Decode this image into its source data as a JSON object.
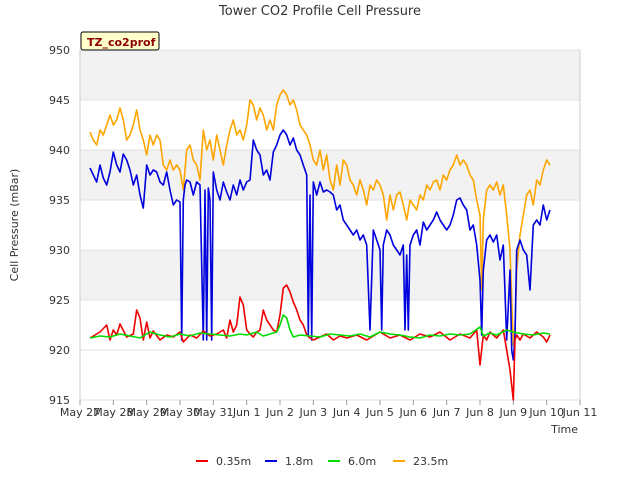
{
  "chart_data": {
    "type": "line",
    "title": "Tower CO2 Profile Cell Pressure",
    "xlabel": "Time",
    "ylabel": "Cell Pressure (mBar)",
    "badge": "TZ_co2prof",
    "ylim": [
      915,
      950
    ],
    "yticks": [
      915,
      920,
      925,
      930,
      935,
      940,
      945,
      950
    ],
    "xlim": [
      0,
      15
    ],
    "xticks": [
      {
        "x": 0,
        "label": "May 27"
      },
      {
        "x": 1,
        "label": "May 28"
      },
      {
        "x": 2,
        "label": "May 29"
      },
      {
        "x": 3,
        "label": "May 30"
      },
      {
        "x": 4,
        "label": "May 31"
      },
      {
        "x": 5,
        "label": "Jun 1"
      },
      {
        "x": 6,
        "label": "Jun 2"
      },
      {
        "x": 7,
        "label": "Jun 3"
      },
      {
        "x": 8,
        "label": "Jun 4"
      },
      {
        "x": 9,
        "label": "Jun 5"
      },
      {
        "x": 10,
        "label": "Jun 6"
      },
      {
        "x": 11,
        "label": "Jun 7"
      },
      {
        "x": 12,
        "label": "Jun 8"
      },
      {
        "x": 13,
        "label": "Jun 9"
      },
      {
        "x": 14,
        "label": "Jun 10"
      },
      {
        "x": 15,
        "label": "Jun 11"
      }
    ],
    "grid_bands": true,
    "legend_position": "bottom",
    "series": [
      {
        "name": "0.35m",
        "color": "#ee0000",
        "x": [
          0.3,
          0.6,
          0.8,
          0.9,
          1.0,
          1.1,
          1.2,
          1.4,
          1.6,
          1.7,
          1.8,
          1.9,
          2.0,
          2.1,
          2.2,
          2.4,
          2.6,
          2.8,
          3.0,
          3.1,
          3.3,
          3.5,
          3.7,
          3.9,
          4.1,
          4.3,
          4.4,
          4.5,
          4.6,
          4.7,
          4.8,
          4.9,
          5.0,
          5.1,
          5.2,
          5.3,
          5.4,
          5.5,
          5.6,
          5.7,
          5.8,
          5.9,
          6.0,
          6.1,
          6.2,
          6.3,
          6.4,
          6.5,
          6.6,
          6.7,
          6.8,
          6.9,
          7.0,
          7.2,
          7.4,
          7.6,
          7.8,
          8.0,
          8.3,
          8.6,
          9.0,
          9.3,
          9.6,
          9.9,
          10.2,
          10.5,
          10.8,
          11.1,
          11.4,
          11.7,
          11.9,
          12.0,
          12.1,
          12.2,
          12.3,
          12.5,
          12.7,
          12.8,
          12.9,
          13.0,
          13.05,
          13.1,
          13.2,
          13.3,
          13.5,
          13.7,
          13.9,
          14.0,
          14.1
        ],
        "y": [
          921.2,
          921.8,
          922.5,
          921.0,
          922.0,
          921.5,
          922.6,
          921.3,
          921.6,
          924.0,
          923.2,
          921.0,
          922.8,
          921.2,
          921.9,
          921.0,
          921.5,
          921.3,
          921.8,
          920.8,
          921.5,
          921.2,
          921.9,
          921.4,
          921.6,
          922.0,
          921.2,
          923.0,
          921.8,
          922.5,
          925.3,
          924.5,
          922.0,
          921.6,
          921.3,
          921.8,
          922.0,
          924.0,
          923.0,
          922.5,
          922.0,
          921.8,
          923.5,
          926.2,
          926.5,
          925.8,
          924.8,
          924.0,
          923.0,
          922.5,
          921.5,
          921.2,
          921.0,
          921.3,
          921.6,
          921.0,
          921.4,
          921.2,
          921.5,
          921.0,
          921.8,
          921.2,
          921.5,
          921.0,
          921.6,
          921.3,
          921.8,
          921.0,
          921.6,
          921.2,
          922.0,
          918.5,
          921.5,
          921.0,
          921.8,
          921.2,
          922.0,
          920.0,
          918.0,
          915.0,
          921.0,
          921.5,
          921.0,
          921.6,
          921.2,
          921.8,
          921.3,
          920.8,
          921.5
        ]
      },
      {
        "name": "1.8m",
        "color": "#0000dd",
        "x": [
          0.3,
          0.4,
          0.5,
          0.6,
          0.7,
          0.8,
          0.9,
          1.0,
          1.1,
          1.2,
          1.3,
          1.4,
          1.5,
          1.6,
          1.7,
          1.8,
          1.9,
          2.0,
          2.1,
          2.2,
          2.3,
          2.4,
          2.5,
          2.6,
          2.7,
          2.8,
          2.9,
          3.0,
          3.05,
          3.1,
          3.15,
          3.2,
          3.3,
          3.4,
          3.5,
          3.6,
          3.7,
          3.75,
          3.8,
          3.85,
          3.9,
          3.95,
          4.0,
          4.1,
          4.2,
          4.3,
          4.4,
          4.5,
          4.6,
          4.7,
          4.8,
          4.9,
          5.0,
          5.1,
          5.2,
          5.3,
          5.4,
          5.5,
          5.6,
          5.7,
          5.8,
          5.9,
          6.0,
          6.1,
          6.2,
          6.3,
          6.4,
          6.5,
          6.6,
          6.7,
          6.8,
          6.85,
          6.9,
          6.95,
          7.0,
          7.1,
          7.2,
          7.3,
          7.4,
          7.5,
          7.6,
          7.7,
          7.8,
          7.9,
          8.0,
          8.1,
          8.2,
          8.3,
          8.4,
          8.5,
          8.6,
          8.7,
          8.8,
          8.9,
          9.0,
          9.05,
          9.1,
          9.2,
          9.3,
          9.4,
          9.5,
          9.6,
          9.7,
          9.75,
          9.8,
          9.85,
          9.9,
          10.0,
          10.1,
          10.2,
          10.3,
          10.4,
          10.5,
          10.6,
          10.7,
          10.8,
          10.9,
          11.0,
          11.1,
          11.2,
          11.3,
          11.4,
          11.5,
          11.6,
          11.7,
          11.8,
          11.9,
          12.0,
          12.05,
          12.1,
          12.2,
          12.3,
          12.4,
          12.5,
          12.6,
          12.7,
          12.8,
          12.9,
          12.95,
          13.0,
          13.05,
          13.1,
          13.2,
          13.3,
          13.4,
          13.5,
          13.6,
          13.7,
          13.8,
          13.9,
          14.0,
          14.1
        ],
        "y": [
          938.2,
          937.5,
          936.8,
          938.5,
          937.2,
          936.5,
          937.8,
          939.8,
          938.5,
          937.8,
          939.6,
          939.0,
          938.0,
          936.5,
          937.5,
          935.5,
          934.2,
          938.5,
          937.5,
          938.0,
          937.8,
          936.8,
          936.5,
          937.8,
          936.0,
          934.5,
          935.0,
          934.8,
          921.0,
          935.0,
          936.5,
          937.0,
          936.8,
          935.5,
          936.8,
          936.5,
          921.0,
          936.0,
          921.0,
          936.2,
          935.0,
          921.0,
          937.8,
          936.0,
          935.0,
          936.8,
          935.8,
          935.0,
          936.5,
          935.5,
          937.0,
          936.0,
          936.8,
          937.0,
          941.0,
          940.0,
          939.5,
          937.5,
          938.0,
          937.0,
          939.8,
          940.5,
          941.5,
          942.0,
          941.5,
          940.5,
          941.2,
          940.0,
          939.5,
          938.5,
          937.5,
          921.5,
          935.5,
          921.0,
          936.8,
          935.5,
          936.8,
          935.8,
          936.0,
          935.8,
          935.5,
          934.0,
          934.5,
          933.0,
          932.5,
          932.0,
          931.5,
          932.0,
          931.0,
          931.5,
          930.5,
          922.0,
          932.0,
          931.0,
          930.0,
          922.0,
          930.5,
          932.0,
          931.5,
          930.5,
          930.0,
          929.5,
          930.5,
          922.0,
          929.5,
          922.0,
          930.5,
          931.5,
          932.0,
          930.5,
          932.8,
          932.0,
          932.5,
          933.0,
          933.8,
          933.0,
          932.5,
          932.0,
          932.5,
          933.5,
          935.0,
          935.2,
          934.5,
          934.0,
          932.0,
          932.5,
          930.5,
          927.0,
          921.5,
          928.0,
          931.0,
          931.5,
          930.8,
          931.5,
          929.0,
          930.5,
          921.0,
          928.0,
          920.0,
          919.0,
          921.5,
          930.0,
          931.0,
          930.0,
          929.5,
          926.0,
          932.5,
          933.0,
          932.5,
          934.5,
          933.0,
          934.0
        ]
      },
      {
        "name": "6.0m",
        "color": "#00dd00",
        "x": [
          0.3,
          0.6,
          0.9,
          1.2,
          1.5,
          1.8,
          2.1,
          2.4,
          2.7,
          3.0,
          3.3,
          3.6,
          3.9,
          4.2,
          4.5,
          4.8,
          5.0,
          5.3,
          5.5,
          5.7,
          5.9,
          6.0,
          6.1,
          6.2,
          6.3,
          6.4,
          6.6,
          6.9,
          7.2,
          7.5,
          7.8,
          8.1,
          8.4,
          8.7,
          9.0,
          9.3,
          9.6,
          9.9,
          10.2,
          10.5,
          10.8,
          11.1,
          11.4,
          11.7,
          12.0,
          12.1,
          12.3,
          12.5,
          12.8,
          13.0,
          13.3,
          13.6,
          13.9,
          14.1
        ],
        "y": [
          921.2,
          921.4,
          921.3,
          921.6,
          921.4,
          921.2,
          921.8,
          921.5,
          921.3,
          921.6,
          921.4,
          921.7,
          921.6,
          921.5,
          921.4,
          921.6,
          921.5,
          921.8,
          921.4,
          921.6,
          921.8,
          922.5,
          923.5,
          923.2,
          922.0,
          921.3,
          921.5,
          921.4,
          921.3,
          921.6,
          921.5,
          921.4,
          921.6,
          921.3,
          921.8,
          921.6,
          921.5,
          921.3,
          921.2,
          921.5,
          921.4,
          921.6,
          921.5,
          921.6,
          922.3,
          921.4,
          921.7,
          921.5,
          922.0,
          921.8,
          921.6,
          921.5,
          921.7,
          921.6
        ]
      },
      {
        "name": "23.5m",
        "color": "#ffa500",
        "x": [
          0.3,
          0.4,
          0.5,
          0.6,
          0.7,
          0.8,
          0.9,
          1.0,
          1.1,
          1.2,
          1.3,
          1.4,
          1.5,
          1.6,
          1.7,
          1.8,
          1.9,
          2.0,
          2.1,
          2.2,
          2.3,
          2.4,
          2.5,
          2.6,
          2.7,
          2.8,
          2.9,
          3.0,
          3.1,
          3.2,
          3.3,
          3.4,
          3.5,
          3.6,
          3.7,
          3.8,
          3.9,
          4.0,
          4.1,
          4.2,
          4.3,
          4.4,
          4.5,
          4.6,
          4.7,
          4.8,
          4.9,
          5.0,
          5.1,
          5.2,
          5.3,
          5.4,
          5.5,
          5.6,
          5.7,
          5.8,
          5.9,
          6.0,
          6.1,
          6.2,
          6.3,
          6.4,
          6.5,
          6.6,
          6.7,
          6.8,
          6.9,
          7.0,
          7.1,
          7.2,
          7.3,
          7.4,
          7.5,
          7.6,
          7.7,
          7.8,
          7.9,
          8.0,
          8.1,
          8.2,
          8.3,
          8.4,
          8.5,
          8.6,
          8.7,
          8.8,
          8.9,
          9.0,
          9.1,
          9.2,
          9.3,
          9.4,
          9.5,
          9.6,
          9.7,
          9.8,
          9.9,
          10.0,
          10.1,
          10.2,
          10.3,
          10.4,
          10.5,
          10.6,
          10.7,
          10.8,
          10.9,
          11.0,
          11.1,
          11.2,
          11.3,
          11.4,
          11.5,
          11.6,
          11.7,
          11.8,
          11.9,
          12.0,
          12.05,
          12.1,
          12.2,
          12.3,
          12.4,
          12.5,
          12.6,
          12.7,
          12.8,
          12.9,
          12.95,
          13.0,
          13.05,
          13.1,
          13.2,
          13.3,
          13.4,
          13.5,
          13.6,
          13.7,
          13.8,
          13.9,
          14.0,
          14.1
        ],
        "y": [
          941.8,
          941.0,
          940.5,
          942.0,
          941.5,
          942.5,
          943.5,
          942.5,
          943.0,
          944.2,
          943.0,
          941.0,
          941.5,
          942.5,
          944.0,
          942.0,
          941.0,
          939.5,
          941.5,
          940.5,
          941.5,
          941.0,
          938.5,
          938.0,
          939.0,
          938.0,
          938.5,
          938.0,
          936.0,
          940.0,
          940.5,
          939.0,
          938.5,
          937.0,
          942.0,
          940.0,
          941.0,
          939.0,
          941.5,
          940.0,
          938.5,
          940.5,
          942.0,
          943.0,
          941.5,
          942.0,
          941.0,
          942.5,
          945.0,
          944.5,
          943.0,
          944.2,
          943.5,
          942.0,
          943.0,
          942.0,
          944.5,
          945.5,
          946.0,
          945.5,
          944.5,
          945.0,
          944.0,
          942.5,
          942.0,
          941.5,
          940.5,
          939.0,
          938.5,
          940.0,
          938.0,
          939.5,
          937.0,
          936.0,
          938.5,
          936.5,
          939.0,
          938.5,
          937.0,
          936.5,
          935.5,
          937.0,
          936.0,
          934.5,
          936.5,
          936.0,
          937.0,
          936.5,
          935.5,
          933.0,
          935.5,
          934.0,
          935.5,
          935.8,
          934.5,
          933.0,
          935.0,
          934.5,
          934.0,
          935.5,
          935.0,
          936.5,
          936.0,
          936.8,
          937.0,
          936.0,
          937.5,
          937.0,
          938.0,
          938.5,
          939.5,
          938.5,
          939.0,
          938.5,
          937.5,
          937.0,
          935.0,
          933.5,
          926.0,
          933.0,
          936.0,
          936.5,
          936.0,
          936.8,
          935.5,
          936.5,
          933.5,
          930.0,
          925.0,
          920.5,
          922.0,
          928.0,
          931.5,
          933.5,
          935.5,
          936.0,
          934.5,
          937.0,
          936.5,
          938.0,
          939.0,
          938.5
        ]
      }
    ]
  }
}
